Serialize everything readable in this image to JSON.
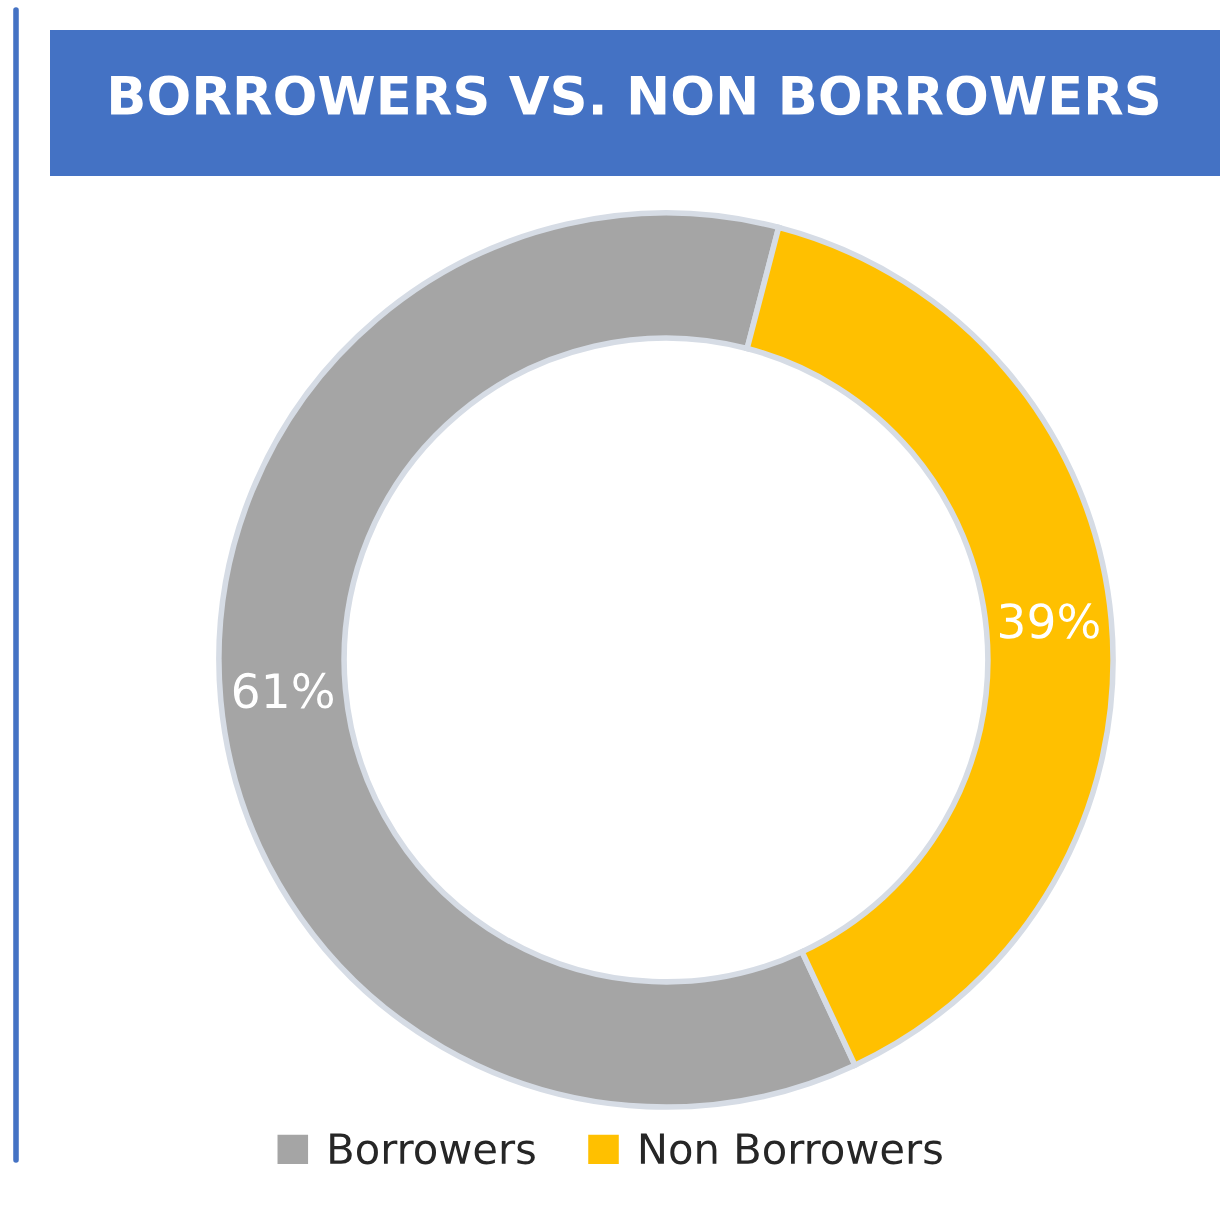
{
  "chart_data": {
    "type": "donut",
    "title": "BORROWERS VS. NON BORROWERS",
    "categories": [
      "Borrowers",
      "Non Borrowers"
    ],
    "values": [
      61,
      39
    ],
    "colors": [
      "#a5a5a5",
      "#ffc000"
    ],
    "value_labels": [
      "61%",
      "39%"
    ],
    "legend": "bottom"
  }
}
